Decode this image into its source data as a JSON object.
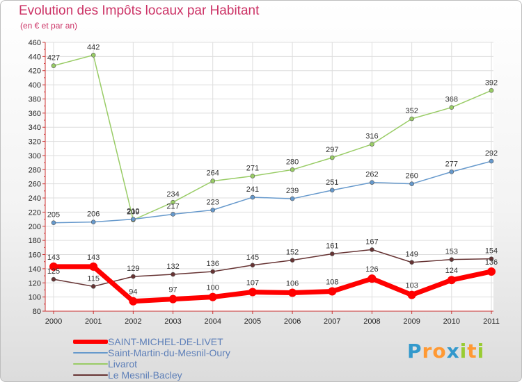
{
  "chart_data": {
    "type": "line",
    "title": "Evolution des Impôts locaux par Habitant",
    "subtitle": "(en € et par an)",
    "xlabel": "",
    "ylabel": "",
    "x": [
      "2000",
      "2001",
      "2002",
      "2003",
      "2004",
      "2005",
      "2006",
      "2007",
      "2008",
      "2009",
      "2010",
      "2011"
    ],
    "ylim": [
      80,
      460
    ],
    "yticks": [
      80,
      100,
      120,
      140,
      160,
      180,
      200,
      220,
      240,
      260,
      280,
      300,
      320,
      340,
      360,
      380,
      400,
      420,
      440,
      460
    ],
    "grid": true,
    "legend_position": "bottom-left",
    "series": [
      {
        "name": "Livarot",
        "color": "#99cc66",
        "values": [
          427,
          442,
          209,
          234,
          264,
          271,
          280,
          297,
          316,
          352,
          368,
          392
        ]
      },
      {
        "name": "Saint-Martin-du-Mesnil-Oury",
        "color": "#6699cc",
        "values": [
          205,
          206,
          210,
          217,
          223,
          241,
          239,
          251,
          262,
          260,
          277,
          292
        ]
      },
      {
        "name": "Le Mesnil-Bacley",
        "color": "#663333",
        "values": [
          125,
          115,
          129,
          132,
          136,
          145,
          152,
          161,
          167,
          149,
          153,
          154
        ]
      },
      {
        "name": "SAINT-MICHEL-DE-LIVET",
        "color": "#ff0000",
        "values": [
          143,
          143,
          94,
          97,
          100,
          107,
          106,
          108,
          126,
          103,
          124,
          136
        ],
        "highlight": true
      }
    ]
  },
  "legend": {
    "items": [
      {
        "label": "SAINT-MICHEL-DE-LIVET",
        "color": "#ff0000"
      },
      {
        "label": "Saint-Martin-du-Mesnil-Oury",
        "color": "#6699cc"
      },
      {
        "label": "Livarot",
        "color": "#99cc66"
      },
      {
        "label": "Le Mesnil-Bacley",
        "color": "#663333"
      }
    ]
  },
  "brand": {
    "letters": [
      "P",
      "r",
      "o",
      "x",
      "i",
      "t",
      "i"
    ],
    "colors": [
      "#3399cc",
      "#ff9933",
      "#ff9933",
      "#3399cc",
      "#99cc33",
      "#ff9933",
      "#99cc33"
    ]
  }
}
